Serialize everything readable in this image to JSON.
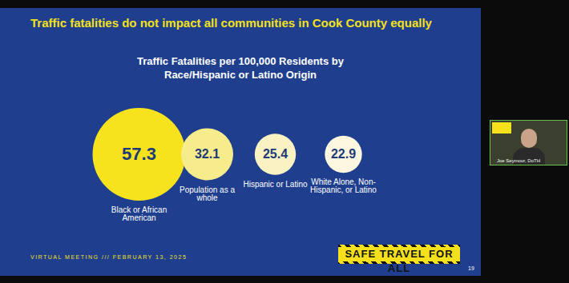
{
  "chart_data": {
    "type": "bubble",
    "title": "Traffic fatalities do not impact all communities in Cook County equally",
    "subtitle": "Traffic Fatalities per 100,000 Residents by Race/Hispanic or Latino Origin",
    "categories": [
      "Black or African American",
      "Population as a whole",
      "Hispanic or Latino",
      "White Alone, Non-Hispanic, or Latino"
    ],
    "values": [
      57.3,
      32.1,
      25.4,
      22.9
    ],
    "colors": [
      "#f6e31d",
      "#f6ec8c",
      "#faf2c2",
      "#fcf7de"
    ],
    "data_labels": true,
    "tick_labels": false
  },
  "slide": {
    "footer": "VIRTUAL MEETING /// FEBRUARY 13, 2025",
    "logo": "SAFE TRAVEL FOR ALL",
    "page": 19
  },
  "participant": {
    "name": "Joe Seymour, DoTH"
  }
}
